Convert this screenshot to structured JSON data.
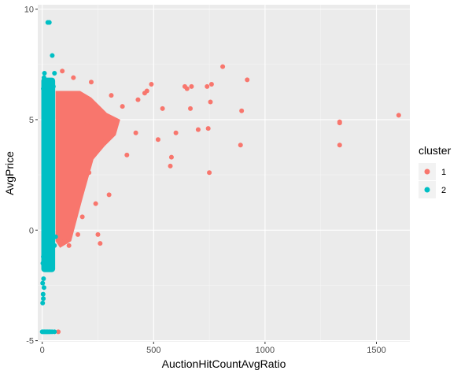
{
  "chart_data": {
    "type": "scatter",
    "xlabel": "AuctionHitCountAvgRatio",
    "ylabel": "AvgPrice",
    "xlim": [
      -20,
      1650
    ],
    "ylim": [
      -5.05,
      10.2
    ],
    "x_ticks": [
      0,
      500,
      1000,
      1500
    ],
    "y_ticks": [
      -5,
      0,
      5,
      10
    ],
    "x_tick_labels": [
      "0",
      "500",
      "1000",
      "1500"
    ],
    "y_tick_labels": [
      "-5",
      "0",
      "5",
      "10"
    ],
    "grid": true,
    "legend": {
      "title": "cluster",
      "position": "right",
      "entries": [
        {
          "label": "1",
          "color": "#F8766D"
        },
        {
          "label": "2",
          "color": "#00BFC4"
        }
      ]
    },
    "series": [
      {
        "name": "1",
        "color": "#F8766D",
        "points": [
          [
            1600,
            5.2
          ],
          [
            1335,
            4.9
          ],
          [
            1335,
            4.85
          ],
          [
            1335,
            3.85
          ],
          [
            920,
            6.8
          ],
          [
            895,
            5.4
          ],
          [
            890,
            3.85
          ],
          [
            810,
            7.4
          ],
          [
            760,
            6.6
          ],
          [
            755,
            5.8
          ],
          [
            750,
            2.6
          ],
          [
            745,
            4.6
          ],
          [
            740,
            6.5
          ],
          [
            700,
            4.55
          ],
          [
            670,
            6.5
          ],
          [
            665,
            5.5
          ],
          [
            650,
            6.4
          ],
          [
            640,
            6.5
          ],
          [
            580,
            3.3
          ],
          [
            575,
            2.9
          ],
          [
            540,
            5.5
          ],
          [
            490,
            6.6
          ],
          [
            470,
            6.3
          ],
          [
            600,
            4.4
          ],
          [
            280,
            4.0
          ],
          [
            250,
            -0.2
          ],
          [
            260,
            -0.6
          ],
          [
            72,
            -4.6
          ],
          [
            150,
            3.5
          ],
          [
            200,
            4.8
          ],
          [
            100,
            -0.5
          ],
          [
            120,
            -0.7
          ],
          [
            160,
            -0.2
          ],
          [
            90,
            7.2
          ],
          [
            140,
            6.9
          ],
          [
            220,
            6.7
          ],
          [
            310,
            6.1
          ],
          [
            360,
            5.6
          ],
          [
            430,
            5.9
          ],
          [
            380,
            3.4
          ],
          [
            420,
            4.4
          ],
          [
            460,
            6.2
          ],
          [
            520,
            4.1
          ],
          [
            300,
            1.6
          ],
          [
            240,
            1.2
          ],
          [
            180,
            0.6
          ],
          [
            130,
            0.3
          ],
          [
            210,
            2.6
          ]
        ]
      },
      {
        "name": "2",
        "color": "#00BFC4",
        "points": [
          [
            25,
            9.4
          ],
          [
            32,
            9.4
          ],
          [
            45,
            7.9
          ],
          [
            55,
            7.1
          ],
          [
            10,
            7.1
          ],
          [
            8,
            6.9
          ],
          [
            40,
            6.6
          ],
          [
            50,
            6.5
          ],
          [
            5,
            6.4
          ],
          [
            0,
            -4.6
          ],
          [
            5,
            -4.6
          ],
          [
            10,
            -4.6
          ],
          [
            15,
            -4.6
          ],
          [
            20,
            -4.6
          ],
          [
            25,
            -4.6
          ],
          [
            30,
            -4.6
          ],
          [
            36,
            -4.6
          ],
          [
            44,
            -4.6
          ],
          [
            55,
            -4.6
          ],
          [
            2,
            -3.3
          ],
          [
            5,
            -3.1
          ],
          [
            4,
            -2.9
          ],
          [
            8,
            -2.6
          ],
          [
            2,
            -2.4
          ],
          [
            6,
            -2.2
          ],
          [
            3,
            -1.5
          ],
          [
            12,
            -1.3
          ],
          [
            5,
            -1.2
          ],
          [
            20,
            -1.1
          ],
          [
            8,
            -0.9
          ],
          [
            28,
            -0.8
          ],
          [
            45,
            -0.6
          ],
          [
            55,
            -0.7
          ],
          [
            60,
            -0.3
          ]
        ]
      }
    ]
  }
}
